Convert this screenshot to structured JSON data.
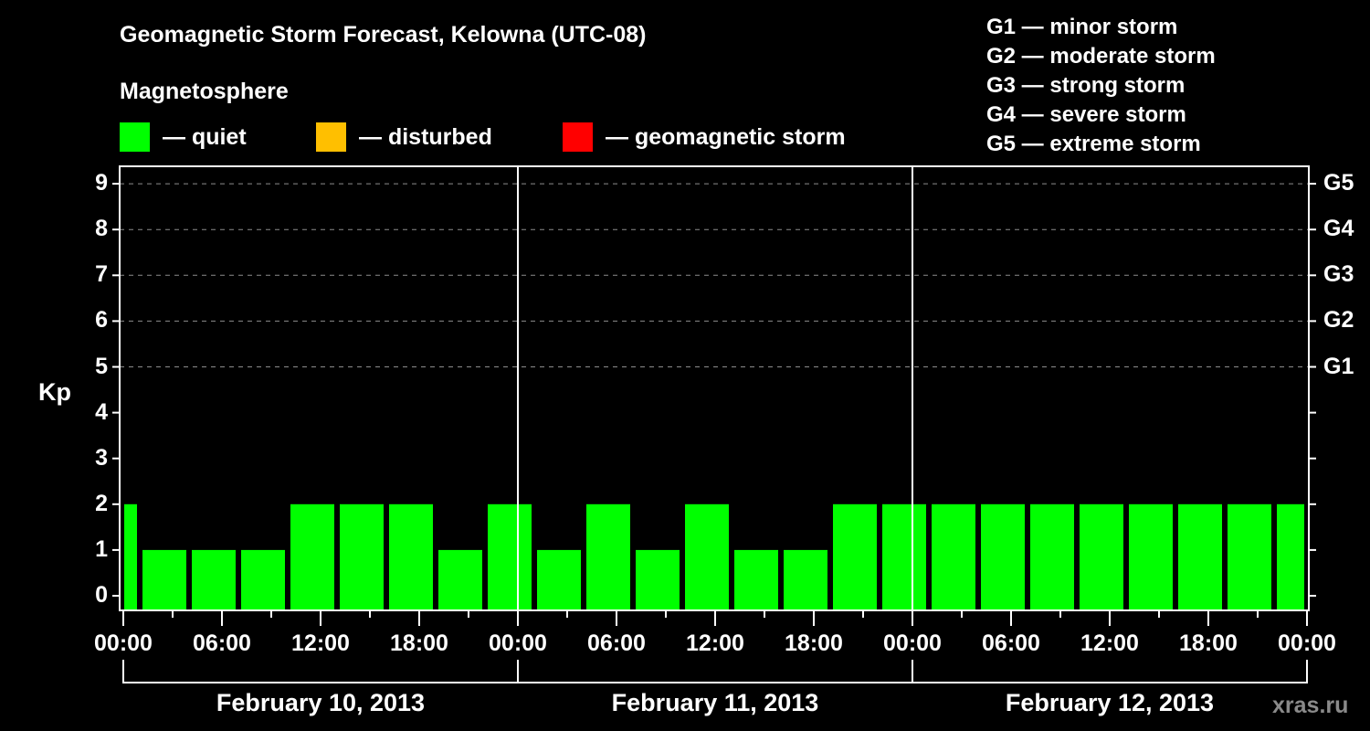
{
  "header": {
    "title": "Geomagnetic Storm Forecast, Kelowna (UTC-08)",
    "subtitle": "Magnetosphere"
  },
  "legend": {
    "items": [
      {
        "label": "— quiet",
        "color": "#00ff00"
      },
      {
        "label": "— disturbed",
        "color": "#ffbf00"
      },
      {
        "label": "— geomagnetic storm",
        "color": "#ff0000"
      }
    ]
  },
  "storm_scale": [
    "G1 — minor storm",
    "G2 — moderate storm",
    "G3 — strong storm",
    "G4 — severe storm",
    "G5 — extreme storm"
  ],
  "axis": {
    "ylabel": "Kp",
    "yticks": [
      "0",
      "1",
      "2",
      "3",
      "4",
      "5",
      "6",
      "7",
      "8",
      "9"
    ],
    "gticks": [
      "G1",
      "G2",
      "G3",
      "G4",
      "G5"
    ],
    "xticks": [
      "00:00",
      "06:00",
      "12:00",
      "18:00",
      "00:00",
      "06:00",
      "12:00",
      "18:00",
      "00:00",
      "06:00",
      "12:00",
      "18:00",
      "00:00"
    ],
    "dates": [
      "February 10, 2013",
      "February 11, 2013",
      "February 12, 2013"
    ]
  },
  "watermark": "xras.ru",
  "chart_data": {
    "type": "bar",
    "title": "Geomagnetic Storm Forecast, Kelowna (UTC-08)",
    "xlabel": "",
    "ylabel": "Kp",
    "ylim": [
      0,
      9
    ],
    "grid": "dashed horizontal at Kp 5-9",
    "right_axis": {
      "5": "G1",
      "6": "G2",
      "7": "G3",
      "8": "G4",
      "9": "G5"
    },
    "interval_hours": 3,
    "categories": [
      "Feb10 00:00",
      "Feb10 03:00",
      "Feb10 06:00",
      "Feb10 09:00",
      "Feb10 12:00",
      "Feb10 15:00",
      "Feb10 18:00",
      "Feb10 21:00",
      "Feb11 00:00",
      "Feb11 03:00",
      "Feb11 06:00",
      "Feb11 09:00",
      "Feb11 12:00",
      "Feb11 15:00",
      "Feb11 18:00",
      "Feb11 21:00",
      "Feb12 00:00",
      "Feb12 03:00",
      "Feb12 06:00",
      "Feb12 09:00",
      "Feb12 12:00",
      "Feb12 15:00",
      "Feb12 18:00",
      "Feb12 21:00",
      "Feb13 00:00"
    ],
    "values": [
      2,
      1,
      1,
      1,
      2,
      2,
      2,
      1,
      2,
      1,
      2,
      1,
      2,
      1,
      1,
      2,
      2,
      2,
      2,
      2,
      2,
      2,
      2,
      2,
      2
    ],
    "bar_color": "#00ff00",
    "legend": [
      "quiet",
      "disturbed",
      "geomagnetic storm"
    ]
  }
}
